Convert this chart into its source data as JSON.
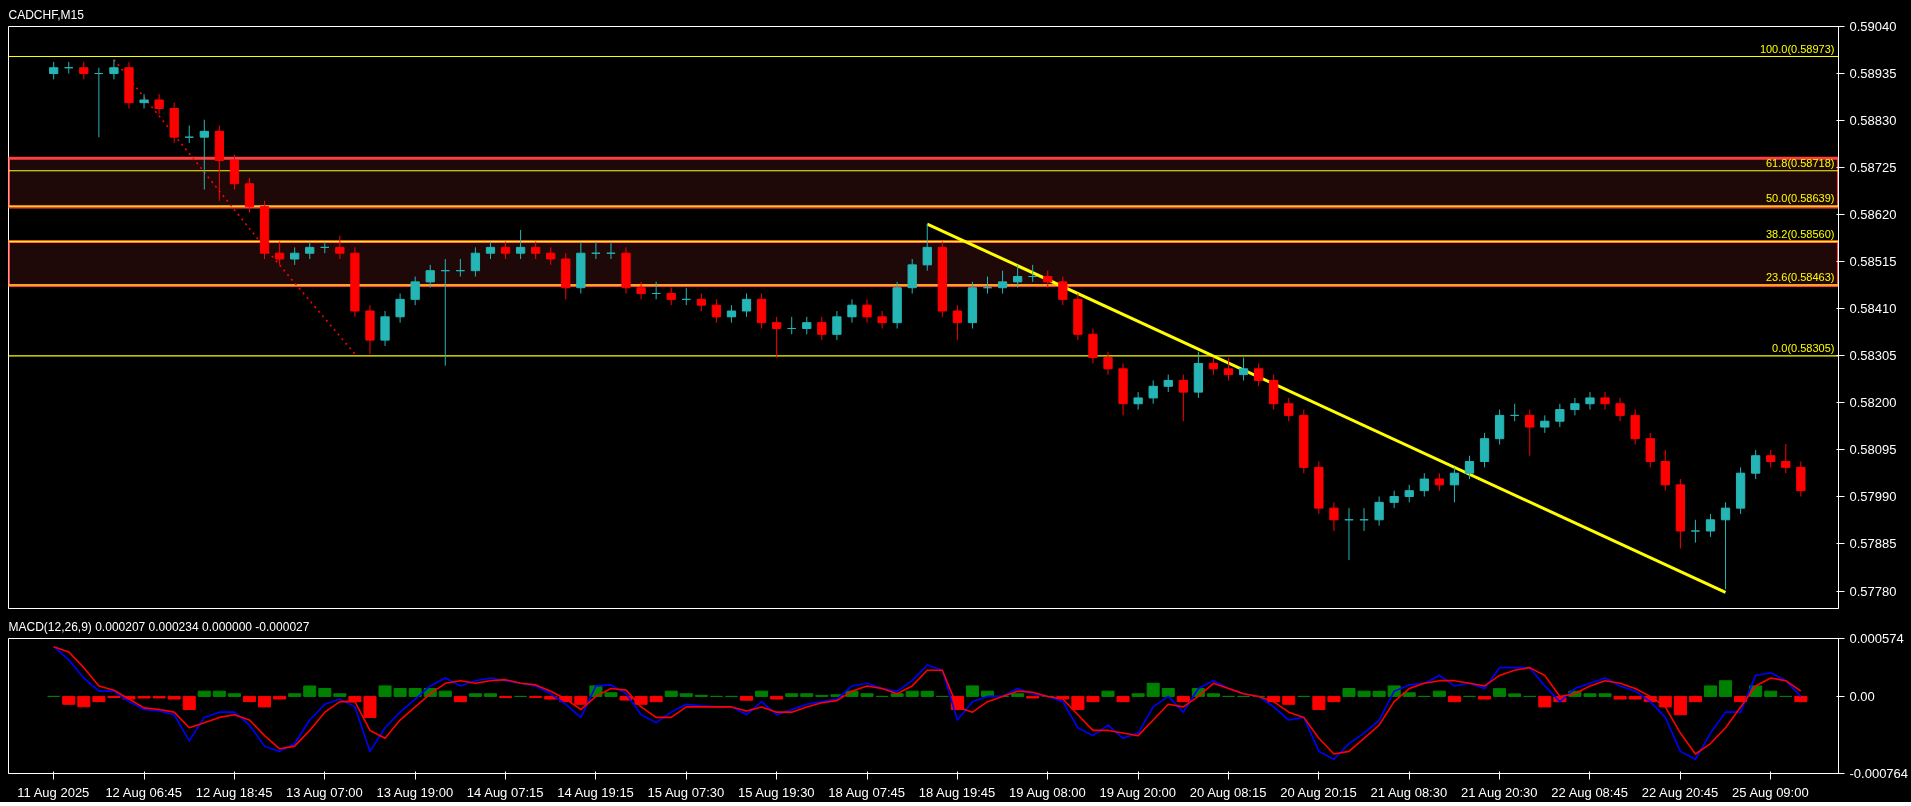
{
  "chart_data": [
    {
      "type": "candlestick",
      "title": "CADCHF,M15",
      "categories": [
        null,
        null,
        null,
        null,
        null,
        null,
        null,
        null,
        null,
        null,
        null,
        null,
        null,
        null,
        null,
        null,
        null,
        null,
        null,
        null,
        null,
        null,
        null,
        null,
        null,
        null,
        null,
        null,
        null,
        null,
        null,
        null,
        null,
        null,
        null,
        null,
        null,
        null,
        null,
        null,
        null,
        null,
        null,
        null,
        null,
        null,
        null,
        null,
        null,
        null,
        null,
        null,
        null,
        null,
        null,
        null,
        null,
        null,
        null,
        null,
        null,
        null,
        null,
        null,
        null,
        null,
        null,
        null,
        null,
        null,
        null,
        null,
        null,
        null,
        null,
        null,
        null,
        null,
        null,
        null,
        null,
        null,
        null,
        null,
        null,
        null,
        null,
        null,
        null,
        null,
        null,
        null,
        null,
        null,
        null,
        null,
        null,
        null,
        null,
        null,
        null,
        null,
        null,
        null,
        null,
        null,
        null,
        null,
        null,
        null,
        null,
        null,
        null,
        null,
        null,
        null,
        null
      ],
      "ohlc": [
        [
          0.58935,
          0.58961,
          0.58922,
          0.58948
        ],
        [
          0.58948,
          0.58961,
          0.58935,
          0.58948
        ],
        [
          0.58948,
          0.58961,
          0.58922,
          0.58935
        ],
        [
          0.58935,
          0.58948,
          0.58793,
          0.58935
        ],
        [
          0.58935,
          0.58966,
          0.58922,
          0.58948
        ],
        [
          0.58948,
          0.58961,
          0.58857,
          0.5887
        ],
        [
          0.5887,
          0.58889,
          0.58857,
          0.58876
        ],
        [
          0.58876,
          0.58889,
          0.58844,
          0.58857
        ],
        [
          0.58857,
          0.5887,
          0.5878,
          0.58793
        ],
        [
          0.58793,
          0.58819,
          0.5878,
          0.58793
        ],
        [
          0.58793,
          0.58832,
          0.58676,
          0.58806
        ],
        [
          0.58806,
          0.58819,
          0.58651,
          0.58741
        ],
        [
          0.58741,
          0.58754,
          0.58676,
          0.58689
        ],
        [
          0.58689,
          0.58702,
          0.58625,
          0.58638
        ],
        [
          0.58638,
          0.58651,
          0.58521,
          0.58534
        ],
        [
          0.58534,
          0.5856,
          0.58508,
          0.58521
        ],
        [
          0.58521,
          0.58547,
          0.58508,
          0.58534
        ],
        [
          0.58534,
          0.5856,
          0.58521,
          0.58547
        ],
        [
          0.58547,
          0.5856,
          0.58534,
          0.58547
        ],
        [
          0.58547,
          0.58573,
          0.58521,
          0.58534
        ],
        [
          0.58534,
          0.58547,
          0.58392,
          0.58405
        ],
        [
          0.58405,
          0.58418,
          0.58309,
          0.5834
        ],
        [
          0.5834,
          0.58405,
          0.58327,
          0.58392
        ],
        [
          0.58392,
          0.58444,
          0.58379,
          0.58431
        ],
        [
          0.58431,
          0.58482,
          0.58418,
          0.5847
        ],
        [
          0.5847,
          0.58508,
          0.58457,
          0.58495
        ],
        [
          0.58495,
          0.58521,
          0.58283,
          0.58495
        ],
        [
          0.58495,
          0.58521,
          0.58482,
          0.58495
        ],
        [
          0.58495,
          0.58547,
          0.58482,
          0.58534
        ],
        [
          0.58534,
          0.5856,
          0.58521,
          0.58547
        ],
        [
          0.58547,
          0.5856,
          0.58521,
          0.58534
        ],
        [
          0.58534,
          0.58586,
          0.58521,
          0.58547
        ],
        [
          0.58547,
          0.5856,
          0.58521,
          0.58534
        ],
        [
          0.58534,
          0.58547,
          0.58508,
          0.58521
        ],
        [
          0.58521,
          0.58534,
          0.58431,
          0.58457
        ],
        [
          0.58457,
          0.5856,
          0.58444,
          0.58534
        ],
        [
          0.58534,
          0.5856,
          0.58521,
          0.58534
        ],
        [
          0.58534,
          0.5856,
          0.58521,
          0.58534
        ],
        [
          0.58534,
          0.58547,
          0.58444,
          0.58457
        ],
        [
          0.58457,
          0.5847,
          0.58431,
          0.58444
        ],
        [
          0.58444,
          0.5847,
          0.58431,
          0.58444
        ],
        [
          0.58444,
          0.58457,
          0.58418,
          0.58431
        ],
        [
          0.58431,
          0.58457,
          0.58418,
          0.58431
        ],
        [
          0.58431,
          0.58444,
          0.58405,
          0.58418
        ],
        [
          0.58418,
          0.58431,
          0.58379,
          0.58392
        ],
        [
          0.58392,
          0.58418,
          0.58379,
          0.58405
        ],
        [
          0.58405,
          0.58444,
          0.58392,
          0.58431
        ],
        [
          0.58431,
          0.58444,
          0.58366,
          0.58379
        ],
        [
          0.58379,
          0.58392,
          0.58301,
          0.58366
        ],
        [
          0.58366,
          0.58392,
          0.58353,
          0.58366
        ],
        [
          0.58366,
          0.58392,
          0.58353,
          0.58379
        ],
        [
          0.58379,
          0.58392,
          0.5834,
          0.58353
        ],
        [
          0.58353,
          0.58405,
          0.5834,
          0.58392
        ],
        [
          0.58392,
          0.58431,
          0.58379,
          0.58418
        ],
        [
          0.58418,
          0.58431,
          0.58379,
          0.58392
        ],
        [
          0.58392,
          0.58405,
          0.58366,
          0.58379
        ],
        [
          0.58379,
          0.5847,
          0.58366,
          0.58457
        ],
        [
          0.58457,
          0.58521,
          0.58444,
          0.58508
        ],
        [
          0.58508,
          0.58599,
          0.58495,
          0.58547
        ],
        [
          0.58547,
          0.5856,
          0.58392,
          0.58405
        ],
        [
          0.58405,
          0.58418,
          0.5834,
          0.58379
        ],
        [
          0.58379,
          0.5847,
          0.58366,
          0.58457
        ],
        [
          0.58457,
          0.58482,
          0.58444,
          0.58457
        ],
        [
          0.58457,
          0.58495,
          0.58444,
          0.5847
        ],
        [
          0.5847,
          0.58508,
          0.58457,
          0.58482
        ],
        [
          0.58482,
          0.58508,
          0.5847,
          0.58482
        ],
        [
          0.58482,
          0.58495,
          0.58457,
          0.5847
        ],
        [
          0.5847,
          0.58482,
          0.58418,
          0.58431
        ],
        [
          0.58431,
          0.58444,
          0.5834,
          0.58353
        ],
        [
          0.58353,
          0.58366,
          0.58288,
          0.58301
        ],
        [
          0.58301,
          0.58314,
          0.58263,
          0.58276
        ],
        [
          0.58276,
          0.58288,
          0.58172,
          0.58198
        ],
        [
          0.58198,
          0.58224,
          0.58185,
          0.58211
        ],
        [
          0.58211,
          0.5825,
          0.58198,
          0.58237
        ],
        [
          0.58237,
          0.58263,
          0.58224,
          0.5825
        ],
        [
          0.5825,
          0.58263,
          0.58159,
          0.58224
        ],
        [
          0.58224,
          0.58314,
          0.58211,
          0.58288
        ],
        [
          0.58288,
          0.58301,
          0.58263,
          0.58276
        ],
        [
          0.58276,
          0.58301,
          0.5825,
          0.58263
        ],
        [
          0.58263,
          0.58301,
          0.5825,
          0.58276
        ],
        [
          0.58276,
          0.58288,
          0.58237,
          0.5825
        ],
        [
          0.5825,
          0.58263,
          0.58185,
          0.58198
        ],
        [
          0.58198,
          0.58211,
          0.58159,
          0.58172
        ],
        [
          0.58172,
          0.58185,
          0.58043,
          0.58056
        ],
        [
          0.58056,
          0.58069,
          0.57952,
          0.57965
        ],
        [
          0.57965,
          0.57978,
          0.57914,
          0.57939
        ],
        [
          0.57939,
          0.57965,
          0.57849,
          0.57939
        ],
        [
          0.57939,
          0.57965,
          0.57914,
          0.57939
        ],
        [
          0.57939,
          0.57991,
          0.57926,
          0.57978
        ],
        [
          0.57978,
          0.58004,
          0.57965,
          0.57991
        ],
        [
          0.57991,
          0.58017,
          0.57978,
          0.58004
        ],
        [
          0.58004,
          0.58043,
          0.57991,
          0.5803
        ],
        [
          0.5803,
          0.58043,
          0.58004,
          0.58017
        ],
        [
          0.58017,
          0.58056,
          0.57978,
          0.58043
        ],
        [
          0.58043,
          0.58082,
          0.5803,
          0.58069
        ],
        [
          0.58069,
          0.58133,
          0.58056,
          0.5812
        ],
        [
          0.5812,
          0.58185,
          0.58107,
          0.58172
        ],
        [
          0.58172,
          0.58198,
          0.58159,
          0.58172
        ],
        [
          0.58172,
          0.58185,
          0.58082,
          0.58146
        ],
        [
          0.58146,
          0.58172,
          0.58133,
          0.58159
        ],
        [
          0.58159,
          0.58198,
          0.58146,
          0.58185
        ],
        [
          0.58185,
          0.58211,
          0.58172,
          0.58198
        ],
        [
          0.58198,
          0.58224,
          0.58185,
          0.58211
        ],
        [
          0.58211,
          0.58224,
          0.58185,
          0.58198
        ],
        [
          0.58198,
          0.58211,
          0.58159,
          0.58172
        ],
        [
          0.58172,
          0.58185,
          0.58107,
          0.5812
        ],
        [
          0.5812,
          0.58133,
          0.58056,
          0.58069
        ],
        [
          0.58069,
          0.58095,
          0.58004,
          0.58017
        ],
        [
          0.58017,
          0.5803,
          0.57875,
          0.57914
        ],
        [
          0.57914,
          0.57939,
          0.57888,
          0.57914
        ],
        [
          0.57914,
          0.57952,
          0.57901,
          0.57939
        ],
        [
          0.57939,
          0.57978,
          0.57784,
          0.57965
        ],
        [
          0.57965,
          0.58056,
          0.57952,
          0.58043
        ],
        [
          0.58043,
          0.58095,
          0.5803,
          0.58082
        ],
        [
          0.58082,
          0.58095,
          0.58056,
          0.58069
        ],
        [
          0.58069,
          0.58108,
          0.58043,
          0.58056
        ],
        [
          0.58056,
          0.58069,
          0.57991,
          0.58004
        ]
      ],
      "colors": [
        "#26b5b5",
        "#26b5b5",
        "#ff0000",
        "#26b5b5",
        "#26b5b5",
        "#ff0000",
        "#26b5b5",
        "#ff0000",
        "#ff0000",
        "#26b5b5",
        "#26b5b5",
        "#ff0000",
        "#ff0000",
        "#ff0000",
        "#ff0000",
        "#ff0000",
        "#26b5b5",
        "#26b5b5",
        "#26b5b5",
        "#ff0000",
        "#ff0000",
        "#ff0000",
        "#26b5b5",
        "#26b5b5",
        "#26b5b5",
        "#26b5b5",
        "#26b5b5",
        "#26b5b5",
        "#26b5b5",
        "#26b5b5",
        "#ff0000",
        "#26b5b5",
        "#ff0000",
        "#ff0000",
        "#ff0000",
        "#26b5b5",
        "#26b5b5",
        "#26b5b5",
        "#ff0000",
        "#ff0000",
        "#26b5b5",
        "#ff0000",
        "#26b5b5",
        "#ff0000",
        "#ff0000",
        "#26b5b5",
        "#26b5b5",
        "#ff0000",
        "#ff0000",
        "#26b5b5",
        "#26b5b5",
        "#ff0000",
        "#26b5b5",
        "#26b5b5",
        "#ff0000",
        "#ff0000",
        "#26b5b5",
        "#26b5b5",
        "#26b5b5",
        "#ff0000",
        "#ff0000",
        "#26b5b5",
        "#26b5b5",
        "#26b5b5",
        "#26b5b5",
        "#26b5b5",
        "#ff0000",
        "#ff0000",
        "#ff0000",
        "#ff0000",
        "#ff0000",
        "#ff0000",
        "#26b5b5",
        "#26b5b5",
        "#26b5b5",
        "#ff0000",
        "#26b5b5",
        "#ff0000",
        "#ff0000",
        "#26b5b5",
        "#ff0000",
        "#ff0000",
        "#ff0000",
        "#ff0000",
        "#ff0000",
        "#ff0000",
        "#26b5b5",
        "#26b5b5",
        "#26b5b5",
        "#26b5b5",
        "#26b5b5",
        "#26b5b5",
        "#ff0000",
        "#26b5b5",
        "#26b5b5",
        "#26b5b5",
        "#26b5b5",
        "#26b5b5",
        "#ff0000",
        "#26b5b5",
        "#26b5b5",
        "#26b5b5",
        "#26b5b5",
        "#ff0000",
        "#ff0000",
        "#ff0000",
        "#ff0000",
        "#ff0000",
        "#ff0000",
        "#26b5b5",
        "#26b5b5",
        "#26b5b5",
        "#26b5b5",
        "#26b5b5",
        "#ff0000",
        "#ff0000",
        "#ff0000"
      ],
      "series": [
        {
          "type": "line",
          "values": [
            null,
            null,
            null,
            null,
            0.58966,
            null,
            null,
            null,
            null,
            null,
            null,
            null,
            null,
            null,
            0.58547,
            null,
            null,
            null,
            null,
            null,
            0.58309,
            null,
            null,
            null,
            null,
            null,
            null,
            null,
            null,
            null,
            null,
            null,
            null,
            null,
            null,
            null,
            null,
            null,
            null,
            null,
            null,
            null,
            null,
            null,
            null,
            null,
            null,
            null,
            null,
            null,
            null,
            null,
            null,
            null,
            null,
            null,
            null,
            null,
            null,
            null,
            null,
            null,
            null,
            null,
            null,
            null,
            null,
            null,
            null,
            null,
            null,
            null,
            null,
            null,
            null,
            null,
            null,
            null,
            null,
            null,
            null,
            null,
            null,
            null,
            null,
            null,
            null,
            null,
            null,
            null,
            null,
            null,
            null,
            null,
            null,
            null,
            null,
            null,
            null,
            null,
            null,
            null,
            null,
            null,
            null,
            null,
            null,
            null,
            null,
            null,
            null,
            null,
            null,
            null,
            null,
            null,
            null
          ],
          "color": "#ff0000",
          "line_style": "dotted"
        },
        {
          "type": "line",
          "values": [
            null,
            null,
            null,
            null,
            null,
            null,
            null,
            null,
            null,
            null,
            null,
            null,
            null,
            null,
            null,
            null,
            null,
            null,
            null,
            null,
            null,
            null,
            null,
            null,
            null,
            null,
            null,
            null,
            null,
            null,
            null,
            null,
            null,
            null,
            null,
            null,
            null,
            null,
            null,
            null,
            null,
            null,
            null,
            null,
            null,
            null,
            null,
            null,
            null,
            null,
            null,
            null,
            null,
            null,
            null,
            null,
            null,
            null,
            0.58599,
            null,
            null,
            null,
            null,
            null,
            null,
            null,
            null,
            null,
            null,
            null,
            null,
            null,
            null,
            null,
            null,
            null,
            null,
            null,
            null,
            null,
            null,
            null,
            null,
            null,
            null,
            null,
            null,
            null,
            null,
            null,
            null,
            null,
            null,
            null,
            null,
            null,
            null,
            null,
            null,
            null,
            null,
            null,
            null,
            null,
            null,
            null,
            null,
            null,
            null,
            null,
            null,
            0.57777,
            null,
            null,
            null,
            null,
            null
          ],
          "color": "#ffff00",
          "line_style": "solid"
        }
      ],
      "ref_lines": [
        {
          "axis": "y",
          "value": 0.58973,
          "label": "100.0(0.58973)",
          "color": "#ffff00"
        },
        {
          "axis": "y",
          "value": 0.58718,
          "label": "61.8(0.58718)",
          "color": "#ffff00"
        },
        {
          "axis": "y",
          "value": 0.58639,
          "label": "50.0(0.58639)",
          "color": "#ffff00"
        },
        {
          "axis": "y",
          "value": 0.5856,
          "label": "38.2(0.58560)",
          "color": "#ffff00"
        },
        {
          "axis": "y",
          "value": 0.58463,
          "label": "23.6(0.58463)",
          "color": "#ffff00"
        },
        {
          "axis": "y",
          "value": 0.58305,
          "label": "0.0(0.58305)",
          "color": "#ffff00"
        }
      ],
      "bands": [
        {
          "axis": "y",
          "from": 0.58637,
          "to": 0.58746,
          "color": "#ff4040"
        },
        {
          "axis": "y",
          "from": 0.58462,
          "to": 0.5856,
          "color": "#ff4040"
        }
      ],
      "ylim": [
        0.57741,
        0.5904
      ],
      "yticks": [
        {
          "value": 0.5904,
          "label": "0.59040"
        },
        0.58935,
        {
          "value": 0.5883,
          "label": "0.58830"
        },
        0.58725,
        {
          "value": 0.5862,
          "label": "0.58620"
        },
        0.58515,
        {
          "value": 0.5841,
          "label": "0.58410"
        },
        0.58305,
        {
          "value": 0.582,
          "label": "0.58200"
        },
        0.58095,
        {
          "value": 0.5799,
          "label": "0.57990"
        },
        0.57885,
        {
          "value": 0.5778,
          "label": "0.57780"
        }
      ],
      "tick_labels": "y"
    },
    {
      "type": "line",
      "title": "MACD(12,26,9) 0.000207 0.000234 0.000000 -0.000027",
      "categories": [
        "11 Aug 2025",
        null,
        null,
        null,
        null,
        null,
        "12 Aug 06:45",
        null,
        null,
        null,
        null,
        null,
        "12 Aug 18:45",
        null,
        null,
        null,
        null,
        null,
        "13 Aug 07:00",
        null,
        null,
        null,
        null,
        null,
        "13 Aug 19:00",
        null,
        null,
        null,
        null,
        null,
        "14 Aug 07:15",
        null,
        null,
        null,
        null,
        null,
        "14 Aug 19:15",
        null,
        null,
        null,
        null,
        null,
        "15 Aug 07:30",
        null,
        null,
        null,
        null,
        null,
        "15 Aug 19:30",
        null,
        null,
        null,
        null,
        null,
        "18 Aug 07:45",
        null,
        null,
        null,
        null,
        null,
        "18 Aug 19:45",
        null,
        null,
        null,
        null,
        null,
        "19 Aug 08:00",
        null,
        null,
        null,
        null,
        null,
        "19 Aug 20:00",
        null,
        null,
        null,
        null,
        null,
        "20 Aug 08:15",
        null,
        null,
        null,
        null,
        null,
        "20 Aug 20:15",
        null,
        null,
        null,
        null,
        null,
        "21 Aug 08:30",
        null,
        null,
        null,
        null,
        null,
        "21 Aug 20:30",
        null,
        null,
        null,
        null,
        null,
        "22 Aug 08:45",
        null,
        null,
        null,
        null,
        null,
        "22 Aug 20:45",
        null,
        null,
        null,
        null,
        null,
        "25 Aug 09:00",
        null,
        null
      ],
      "series": [
        {
          "type": "bar",
          "values": [
            0,
            -7.8e-05,
            -0.000103,
            -5.2e-05,
            -1e-05,
            -2.6e-05,
            -1.6e-05,
            -1.5e-05,
            -2.6e-05,
            -0.00013,
            5.2e-05,
            5.2e-05,
            2.6e-05,
            -5.1e-05,
            -0.000104,
            -2.6e-05,
            2.6e-05,
            0.000103,
            7.8e-05,
            2.6e-05,
            -5.2e-05,
            -0.000208,
            0.000104,
            7.8e-05,
            7.8e-05,
            7.8e-05,
            5.2e-05,
            -5.2e-05,
            2.6e-05,
            2.6e-05,
            -1e-05,
            0,
            -1e-05,
            -2.6e-05,
            -5.2e-05,
            -7.8e-05,
            0.000104,
            3.6e-05,
            -3.6e-05,
            -7.8e-05,
            -5.2e-05,
            5.2e-05,
            2.6e-05,
            1.1e-05,
            0,
            0,
            -3.7e-05,
            5.2e-05,
            -2.6e-05,
            2.6e-05,
            2.6e-05,
            1e-05,
            1.6e-05,
            5.2e-05,
            2.6e-05,
            0,
            2.6e-05,
            5.2e-05,
            5.1e-05,
            0,
            -0.00013,
            0.000104,
            5.2e-05,
            0,
            2.6e-05,
            -1.6e-05,
            0,
            -2.6e-05,
            -0.000129,
            -5.2e-05,
            5.2e-05,
            -5.2e-05,
            2.6e-05,
            0.00013,
            7.8e-05,
            -5.2e-05,
            7.8e-05,
            2.6e-05,
            0,
            0,
            0,
            -5.2e-05,
            -7.8e-05,
            0,
            -0.00013,
            -5.2e-05,
            7.8e-05,
            5.2e-05,
            5.1e-05,
            0.000104,
            3.6e-05,
            0,
            5.2e-05,
            -5.2e-05,
            0,
            -2.6e-05,
            7.7e-05,
            2.5e-05,
            0,
            -0.000104,
            -5.2e-05,
            5.2e-05,
            2.6e-05,
            2.6e-05,
            -2.6e-05,
            -2.6e-05,
            -5.2e-05,
            -0.000104,
            -0.000182,
            -5.2e-05,
            0.000104,
            0.000155,
            -5.2e-05,
            0.000104,
            5.2e-05,
            0,
            -5.2e-05
          ],
          "colors": [
            "#008000",
            "#ff0000",
            "#ff0000",
            "#ff0000",
            "#ff0000",
            "#ff0000",
            "#ff0000",
            "#ff0000",
            "#ff0000",
            "#ff0000",
            "#008000",
            "#008000",
            "#008000",
            "#ff0000",
            "#ff0000",
            "#ff0000",
            "#008000",
            "#008000",
            "#008000",
            "#008000",
            "#ff0000",
            "#ff0000",
            "#008000",
            "#008000",
            "#008000",
            "#008000",
            "#008000",
            "#ff0000",
            "#008000",
            "#008000",
            "#ff0000",
            "#008000",
            "#ff0000",
            "#ff0000",
            "#ff0000",
            "#ff0000",
            "#008000",
            "#008000",
            "#ff0000",
            "#ff0000",
            "#ff0000",
            "#008000",
            "#008000",
            "#008000",
            "#008000",
            "#008000",
            "#ff0000",
            "#008000",
            "#ff0000",
            "#008000",
            "#008000",
            "#008000",
            "#008000",
            "#008000",
            "#008000",
            "#008000",
            "#008000",
            "#008000",
            "#008000",
            "#008000",
            "#ff0000",
            "#008000",
            "#008000",
            "#008000",
            "#008000",
            "#ff0000",
            "#008000",
            "#ff0000",
            "#ff0000",
            "#ff0000",
            "#008000",
            "#ff0000",
            "#008000",
            "#008000",
            "#008000",
            "#ff0000",
            "#008000",
            "#008000",
            "#008000",
            "#008000",
            "#008000",
            "#ff0000",
            "#ff0000",
            "#008000",
            "#ff0000",
            "#ff0000",
            "#008000",
            "#008000",
            "#008000",
            "#008000",
            "#008000",
            "#008000",
            "#008000",
            "#ff0000",
            "#008000",
            "#ff0000",
            "#008000",
            "#008000",
            "#008000",
            "#ff0000",
            "#ff0000",
            "#008000",
            "#008000",
            "#008000",
            "#ff0000",
            "#ff0000",
            "#ff0000",
            "#ff0000",
            "#ff0000",
            "#ff0000",
            "#008000",
            "#008000",
            "#ff0000",
            "#008000",
            "#008000",
            "#008000",
            "#ff0000"
          ]
        },
        {
          "type": "line",
          "color": "#0000ff",
          "values": [
            0.000493,
            0.000363,
            0.000182,
            5.2e-05,
            5.2e-05,
            -5.2e-05,
            -0.00013,
            -0.000145,
            -0.000182,
            -0.000441,
            -0.000208,
            -0.000156,
            -0.000156,
            -0.000285,
            -0.000493,
            -0.000545,
            -0.000467,
            -0.000234,
            -7.8e-05,
            -2.6e-05,
            -0.000104,
            -0.000545,
            -0.000311,
            -0.000156,
            -2.6e-05,
            0.000104,
            0.000182,
            0.000104,
            0.000156,
            0.000182,
            0.000156,
            0.00013,
            0.000104,
            2.6e-05,
            -7.8e-05,
            -0.000208,
            0.000104,
            0.000114,
            2.6e-05,
            -0.000182,
            -0.00026,
            -0.000156,
            -7.8e-05,
            -9.3e-05,
            -0.000104,
            -0.000104,
            -0.000182,
            -5.2e-05,
            -0.000182,
            -0.00013,
            -7.8e-05,
            -5.2e-05,
            -2.6e-05,
            0.000104,
            0.00013,
            7.8e-05,
            5.2e-05,
            0.000156,
            0.000311,
            0.00026,
            -0.000234,
            -5.2e-05,
            0,
            0,
            7.8e-05,
            2.6e-05,
            0,
            -5.2e-05,
            -0.000311,
            -0.000389,
            -0.000285,
            -0.000415,
            -0.000363,
            -0.000104,
            0,
            -0.000156,
            7.8e-05,
            0.000156,
            7.8e-05,
            2.6e-05,
            0,
            -0.000104,
            -0.000234,
            -0.000208,
            -0.000545,
            -0.000623,
            -0.000467,
            -0.000363,
            -0.000234,
            5.2e-05,
            0.000114,
            0.00013,
            0.000208,
            0.000104,
            0.00013,
            7.8e-05,
            0.000285,
            0.000285,
            0.000285,
            0.000104,
            -5.2e-05,
            7.8e-05,
            0.00013,
            0.000182,
            0.000104,
            5.2e-05,
            -5.2e-05,
            -0.000208,
            -0.000545,
            -0.000623,
            -0.000363,
            -0.000156,
            -0.000156,
            0.000208,
            0.000234,
            0.000156,
            0
          ]
        },
        {
          "type": "line",
          "color": "#ff0000",
          "values": [
            0.000493,
            0.000441,
            0.000285,
            0.000104,
            6.2e-05,
            -2.6e-05,
            -0.000114,
            -0.00013,
            -0.000156,
            -0.000311,
            -0.00026,
            -0.000208,
            -0.000182,
            -0.000234,
            -0.000389,
            -0.000519,
            -0.000493,
            -0.000337,
            -0.000156,
            -5.2e-05,
            -5.2e-05,
            -0.000337,
            -0.000415,
            -0.000234,
            -0.000104,
            2.6e-05,
            0.00013,
            0.000156,
            0.00013,
            0.000156,
            0.000166,
            0.00013,
            0.000114,
            5.2e-05,
            -2.6e-05,
            -0.00013,
            0,
            7.8e-05,
            6.2e-05,
            -0.000104,
            -0.000208,
            -0.000208,
            -0.000104,
            -0.000104,
            -0.000104,
            -0.000104,
            -0.000145,
            -0.000104,
            -0.000156,
            -0.000156,
            -0.000104,
            -6.2e-05,
            -4.2e-05,
            5.2e-05,
            0.000104,
            7.8e-05,
            2.6e-05,
            0.000104,
            0.00026,
            0.00026,
            -0.000104,
            -0.000156,
            -5.2e-05,
            0,
            5.2e-05,
            4.2e-05,
            0,
            -2.6e-05,
            -0.000182,
            -0.000337,
            -0.000337,
            -0.000363,
            -0.000389,
            -0.000234,
            -7.8e-05,
            -0.000104,
            0,
            0.00013,
            7.8e-05,
            2.6e-05,
            0,
            -5.2e-05,
            -0.000156,
            -0.000208,
            -0.000415,
            -0.000571,
            -0.000545,
            -0.000415,
            -0.000285,
            -5.2e-05,
            7.8e-05,
            0.00013,
            0.000156,
            0.000156,
            0.00013,
            0.000104,
            0.000208,
            0.00026,
            0.000285,
            0.000208,
            0,
            2.6e-05,
            0.000104,
            0.000156,
            0.00013,
            7.8e-05,
            0,
            -0.000104,
            -0.000363,
            -0.000571,
            -0.000467,
            -0.000311,
            -0.000104,
            0.000104,
            0.000182,
            0.000156,
            5.2e-05
          ]
        }
      ],
      "ylim": [
        -0.000764,
        0.000574
      ],
      "yticks": [
        0.000574,
        {
          "value": 0,
          "label": "0.00"
        },
        -0.000764
      ]
    }
  ]
}
